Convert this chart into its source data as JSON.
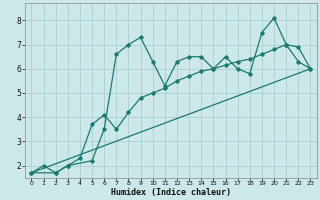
{
  "xlabel": "Humidex (Indice chaleur)",
  "bg_color": "#cce8e8",
  "grid_color": "#aad0d0",
  "line_color": "#1a7a6e",
  "xlim": [
    -0.5,
    23.5
  ],
  "ylim": [
    1.5,
    8.7
  ],
  "xticks": [
    0,
    1,
    2,
    3,
    4,
    5,
    6,
    7,
    8,
    9,
    10,
    11,
    12,
    13,
    14,
    15,
    16,
    17,
    18,
    19,
    20,
    21,
    22,
    23
  ],
  "yticks": [
    2,
    3,
    4,
    5,
    6,
    7,
    8
  ],
  "series1_x": [
    0,
    1,
    2,
    3,
    5,
    6,
    7,
    8,
    9,
    10,
    11,
    12,
    13,
    14,
    15,
    16,
    17,
    18,
    19,
    20,
    21,
    22,
    23
  ],
  "series1_y": [
    1.7,
    2.0,
    1.7,
    2.0,
    2.2,
    3.5,
    6.6,
    7.0,
    7.3,
    6.3,
    5.3,
    6.3,
    6.5,
    6.5,
    6.0,
    6.5,
    6.0,
    5.8,
    7.5,
    8.1,
    7.0,
    6.3,
    6.0
  ],
  "series2_x": [
    0,
    2,
    3,
    4,
    5,
    6,
    7,
    8,
    9,
    10,
    11,
    12,
    13,
    14,
    15,
    16,
    17,
    18,
    19,
    20,
    21,
    22,
    23
  ],
  "series2_y": [
    1.7,
    1.7,
    2.0,
    2.3,
    3.7,
    4.1,
    3.5,
    4.2,
    4.8,
    5.0,
    5.2,
    5.5,
    5.7,
    5.9,
    6.0,
    6.15,
    6.3,
    6.4,
    6.6,
    6.8,
    7.0,
    6.9,
    6.0
  ],
  "series3_x": [
    0,
    23
  ],
  "series3_y": [
    1.7,
    6.0
  ]
}
